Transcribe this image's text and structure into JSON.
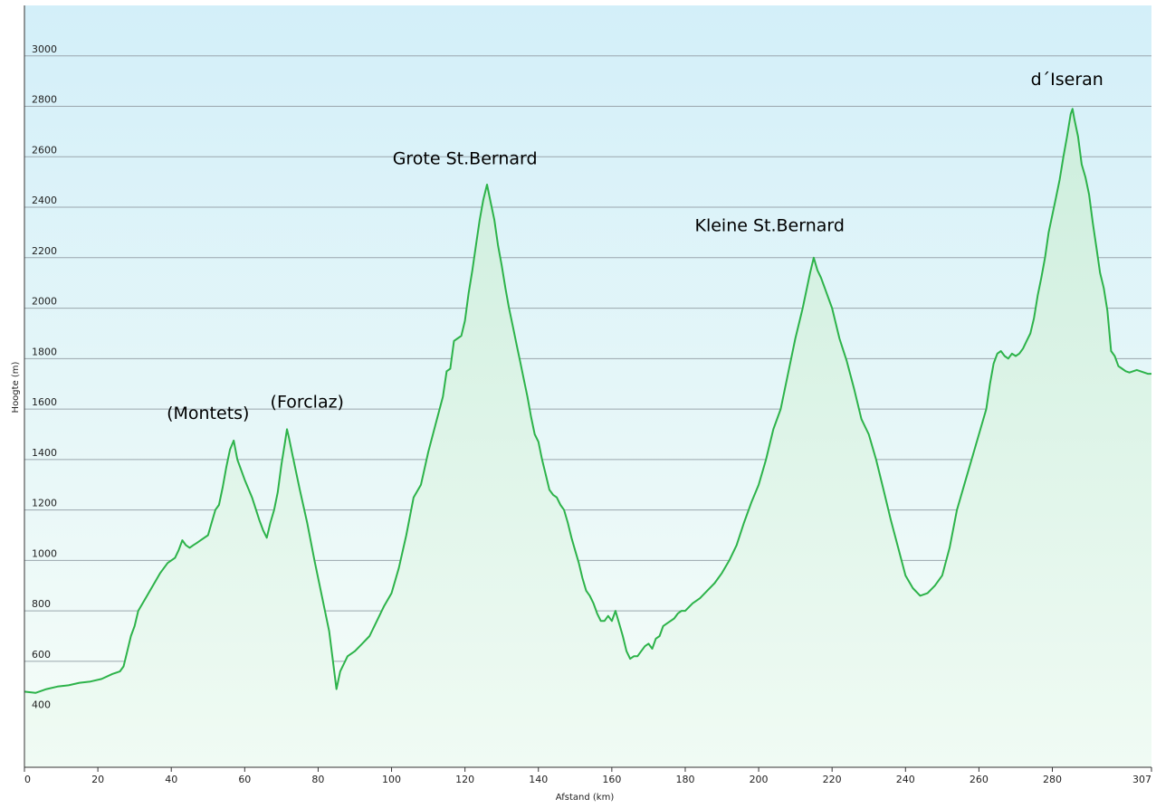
{
  "chart_data": {
    "type": "area",
    "title": "",
    "xlabel": "Afstand  (km)",
    "ylabel": "Hoogte (m)",
    "xlim": [
      0,
      307
    ],
    "ylim": [
      180,
      3200
    ],
    "grid": true,
    "colors": {
      "line": "#2db34a",
      "fill_top": "#cdeedd",
      "fill_bottom": "#f0fbf4",
      "bg_top": "#d3eff9",
      "bg_bottom": "#f6fdf8",
      "grid": "#9aa6ad"
    },
    "x_ticks": [
      {
        "value": 0,
        "label": "0"
      },
      {
        "value": 20,
        "label": "20"
      },
      {
        "value": 40,
        "label": "40"
      },
      {
        "value": 60,
        "label": "60"
      },
      {
        "value": 80,
        "label": "80"
      },
      {
        "value": 100,
        "label": "100"
      },
      {
        "value": 120,
        "label": "120"
      },
      {
        "value": 140,
        "label": "140"
      },
      {
        "value": 160,
        "label": "160"
      },
      {
        "value": 180,
        "label": "180"
      },
      {
        "value": 200,
        "label": "200"
      },
      {
        "value": 220,
        "label": "220"
      },
      {
        "value": 240,
        "label": "240"
      },
      {
        "value": 260,
        "label": "260"
      },
      {
        "value": 280,
        "label": "280"
      },
      {
        "value": 307,
        "label": "307"
      }
    ],
    "y_ticks": [
      {
        "value": 400,
        "label": "400"
      },
      {
        "value": 600,
        "label": "600"
      },
      {
        "value": 800,
        "label": "800"
      },
      {
        "value": 1000,
        "label": "1000"
      },
      {
        "value": 1200,
        "label": "1200"
      },
      {
        "value": 1400,
        "label": "1400"
      },
      {
        "value": 1600,
        "label": "1600"
      },
      {
        "value": 1800,
        "label": "1800"
      },
      {
        "value": 2000,
        "label": "2000"
      },
      {
        "value": 2200,
        "label": "2200"
      },
      {
        "value": 2400,
        "label": "2400"
      },
      {
        "value": 2600,
        "label": "2600"
      },
      {
        "value": 2800,
        "label": "2800"
      },
      {
        "value": 3000,
        "label": "3000"
      }
    ],
    "annotations": [
      {
        "text": "(Montets)",
        "x": 50,
        "y": 1560
      },
      {
        "text": "(Forclaz)",
        "x": 77,
        "y": 1605
      },
      {
        "text": "Grote St.Bernard",
        "x": 120,
        "y": 2570
      },
      {
        "text": "Kleine St.Bernard",
        "x": 203,
        "y": 2305
      },
      {
        "text": "d´Iseran",
        "x": 284,
        "y": 2885
      }
    ],
    "series": [
      {
        "points": [
          [
            0,
            480
          ],
          [
            3,
            475
          ],
          [
            6,
            490
          ],
          [
            9,
            500
          ],
          [
            12,
            505
          ],
          [
            15,
            515
          ],
          [
            18,
            520
          ],
          [
            21,
            530
          ],
          [
            24,
            550
          ],
          [
            26,
            560
          ],
          [
            27,
            580
          ],
          [
            28,
            640
          ],
          [
            29,
            700
          ],
          [
            30,
            740
          ],
          [
            31,
            800
          ],
          [
            33,
            850
          ],
          [
            35,
            900
          ],
          [
            37,
            950
          ],
          [
            39,
            990
          ],
          [
            41,
            1010
          ],
          [
            42,
            1040
          ],
          [
            43,
            1080
          ],
          [
            44,
            1060
          ],
          [
            45,
            1050
          ],
          [
            46,
            1060
          ],
          [
            47,
            1070
          ],
          [
            48,
            1080
          ],
          [
            50,
            1100
          ],
          [
            51,
            1150
          ],
          [
            52,
            1200
          ],
          [
            53,
            1220
          ],
          [
            54,
            1290
          ],
          [
            55,
            1370
          ],
          [
            56,
            1440
          ],
          [
            57,
            1475
          ],
          [
            58,
            1400
          ],
          [
            60,
            1320
          ],
          [
            62,
            1250
          ],
          [
            64,
            1160
          ],
          [
            65,
            1120
          ],
          [
            66,
            1090
          ],
          [
            67,
            1150
          ],
          [
            68,
            1200
          ],
          [
            69,
            1270
          ],
          [
            70,
            1380
          ],
          [
            71,
            1470
          ],
          [
            71.5,
            1520
          ],
          [
            72,
            1490
          ],
          [
            73,
            1420
          ],
          [
            75,
            1280
          ],
          [
            77,
            1150
          ],
          [
            79,
            1000
          ],
          [
            81,
            860
          ],
          [
            83,
            720
          ],
          [
            85,
            490
          ],
          [
            86,
            560
          ],
          [
            88,
            620
          ],
          [
            90,
            640
          ],
          [
            92,
            670
          ],
          [
            94,
            700
          ],
          [
            96,
            760
          ],
          [
            98,
            820
          ],
          [
            100,
            870
          ],
          [
            102,
            970
          ],
          [
            104,
            1100
          ],
          [
            106,
            1250
          ],
          [
            108,
            1300
          ],
          [
            110,
            1430
          ],
          [
            112,
            1540
          ],
          [
            114,
            1650
          ],
          [
            115,
            1750
          ],
          [
            116,
            1760
          ],
          [
            117,
            1870
          ],
          [
            118,
            1880
          ],
          [
            119,
            1890
          ],
          [
            120,
            1950
          ],
          [
            121,
            2060
          ],
          [
            122,
            2150
          ],
          [
            123,
            2250
          ],
          [
            124,
            2350
          ],
          [
            125,
            2430
          ],
          [
            126,
            2490
          ],
          [
            127,
            2420
          ],
          [
            128,
            2350
          ],
          [
            129,
            2250
          ],
          [
            130,
            2170
          ],
          [
            131,
            2080
          ],
          [
            132,
            2000
          ],
          [
            133,
            1930
          ],
          [
            134,
            1860
          ],
          [
            135,
            1790
          ],
          [
            136,
            1720
          ],
          [
            137,
            1650
          ],
          [
            138,
            1570
          ],
          [
            139,
            1500
          ],
          [
            140,
            1470
          ],
          [
            141,
            1400
          ],
          [
            142,
            1340
          ],
          [
            143,
            1280
          ],
          [
            144,
            1260
          ],
          [
            145,
            1250
          ],
          [
            146,
            1220
          ],
          [
            147,
            1200
          ],
          [
            148,
            1150
          ],
          [
            149,
            1090
          ],
          [
            150,
            1040
          ],
          [
            151,
            990
          ],
          [
            152,
            930
          ],
          [
            153,
            880
          ],
          [
            154,
            860
          ],
          [
            155,
            830
          ],
          [
            156,
            790
          ],
          [
            157,
            760
          ],
          [
            158,
            760
          ],
          [
            159,
            780
          ],
          [
            160,
            760
          ],
          [
            161,
            800
          ],
          [
            162,
            750
          ],
          [
            163,
            700
          ],
          [
            164,
            640
          ],
          [
            165,
            610
          ],
          [
            166,
            620
          ],
          [
            167,
            620
          ],
          [
            168,
            640
          ],
          [
            169,
            660
          ],
          [
            170,
            670
          ],
          [
            171,
            650
          ],
          [
            172,
            690
          ],
          [
            173,
            700
          ],
          [
            174,
            740
          ],
          [
            175,
            750
          ],
          [
            176,
            760
          ],
          [
            177,
            770
          ],
          [
            178,
            790
          ],
          [
            179,
            800
          ],
          [
            180,
            800
          ],
          [
            182,
            830
          ],
          [
            184,
            850
          ],
          [
            186,
            880
          ],
          [
            188,
            910
          ],
          [
            190,
            950
          ],
          [
            192,
            1000
          ],
          [
            194,
            1060
          ],
          [
            196,
            1150
          ],
          [
            198,
            1230
          ],
          [
            200,
            1300
          ],
          [
            202,
            1400
          ],
          [
            204,
            1520
          ],
          [
            206,
            1600
          ],
          [
            208,
            1740
          ],
          [
            210,
            1880
          ],
          [
            212,
            2000
          ],
          [
            214,
            2140
          ],
          [
            215,
            2200
          ],
          [
            216,
            2150
          ],
          [
            217,
            2120
          ],
          [
            218,
            2080
          ],
          [
            220,
            2000
          ],
          [
            222,
            1880
          ],
          [
            224,
            1790
          ],
          [
            226,
            1680
          ],
          [
            228,
            1560
          ],
          [
            230,
            1500
          ],
          [
            232,
            1400
          ],
          [
            234,
            1280
          ],
          [
            236,
            1160
          ],
          [
            238,
            1050
          ],
          [
            240,
            940
          ],
          [
            242,
            890
          ],
          [
            244,
            860
          ],
          [
            246,
            870
          ],
          [
            248,
            900
          ],
          [
            250,
            940
          ],
          [
            252,
            1050
          ],
          [
            254,
            1200
          ],
          [
            256,
            1300
          ],
          [
            258,
            1400
          ],
          [
            260,
            1500
          ],
          [
            262,
            1600
          ],
          [
            263,
            1700
          ],
          [
            264,
            1780
          ],
          [
            265,
            1820
          ],
          [
            266,
            1830
          ],
          [
            267,
            1810
          ],
          [
            268,
            1800
          ],
          [
            269,
            1820
          ],
          [
            270,
            1810
          ],
          [
            271,
            1820
          ],
          [
            272,
            1840
          ],
          [
            273,
            1870
          ],
          [
            274,
            1900
          ],
          [
            275,
            1960
          ],
          [
            276,
            2050
          ],
          [
            277,
            2120
          ],
          [
            278,
            2200
          ],
          [
            279,
            2300
          ],
          [
            280,
            2370
          ],
          [
            281,
            2440
          ],
          [
            282,
            2510
          ],
          [
            283,
            2600
          ],
          [
            284,
            2680
          ],
          [
            285,
            2770
          ],
          [
            285.5,
            2790
          ],
          [
            286,
            2750
          ],
          [
            287,
            2680
          ],
          [
            288,
            2570
          ],
          [
            289,
            2520
          ],
          [
            290,
            2450
          ],
          [
            291,
            2340
          ],
          [
            292,
            2240
          ],
          [
            293,
            2140
          ],
          [
            294,
            2080
          ],
          [
            295,
            1990
          ],
          [
            296,
            1830
          ],
          [
            297,
            1810
          ],
          [
            298,
            1770
          ],
          [
            299,
            1760
          ],
          [
            300,
            1750
          ],
          [
            301,
            1745
          ],
          [
            302,
            1750
          ],
          [
            303,
            1755
          ],
          [
            304,
            1750
          ],
          [
            305,
            1745
          ],
          [
            306,
            1740
          ],
          [
            307,
            1740
          ]
        ]
      }
    ]
  }
}
